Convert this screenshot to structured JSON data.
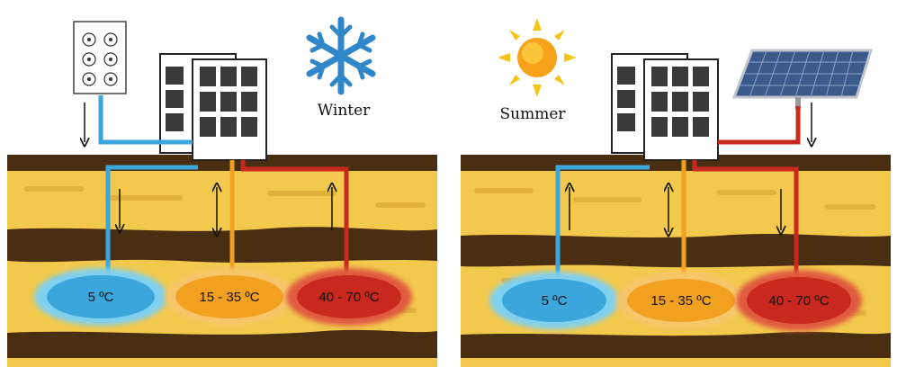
{
  "colors": {
    "cold": "#3aa6dc",
    "warm": "#f2a020",
    "hot": "#c8281e",
    "soil_dark": "#4a2e12",
    "soil_sand": "#f2c94c"
  },
  "panels": [
    {
      "season": "Winter",
      "season_icon": "snowflake-icon",
      "source_icon": "fan-coil-unit-icon",
      "reservoirs": [
        {
          "label": "5 ºC",
          "tone": "cold",
          "flow": "down"
        },
        {
          "label": "15 - 35 ºC",
          "tone": "warm",
          "flow": "both"
        },
        {
          "label": "40 - 70 ºC",
          "tone": "hot",
          "flow": "up"
        }
      ]
    },
    {
      "season": "Summer",
      "season_icon": "sun-icon",
      "source_icon": "solar-panel-icon",
      "reservoirs": [
        {
          "label": "5 ºC",
          "tone": "cold",
          "flow": "up"
        },
        {
          "label": "15 - 35 ºC",
          "tone": "warm",
          "flow": "both"
        },
        {
          "label": "40 - 70 ºC",
          "tone": "hot",
          "flow": "down"
        }
      ]
    }
  ]
}
